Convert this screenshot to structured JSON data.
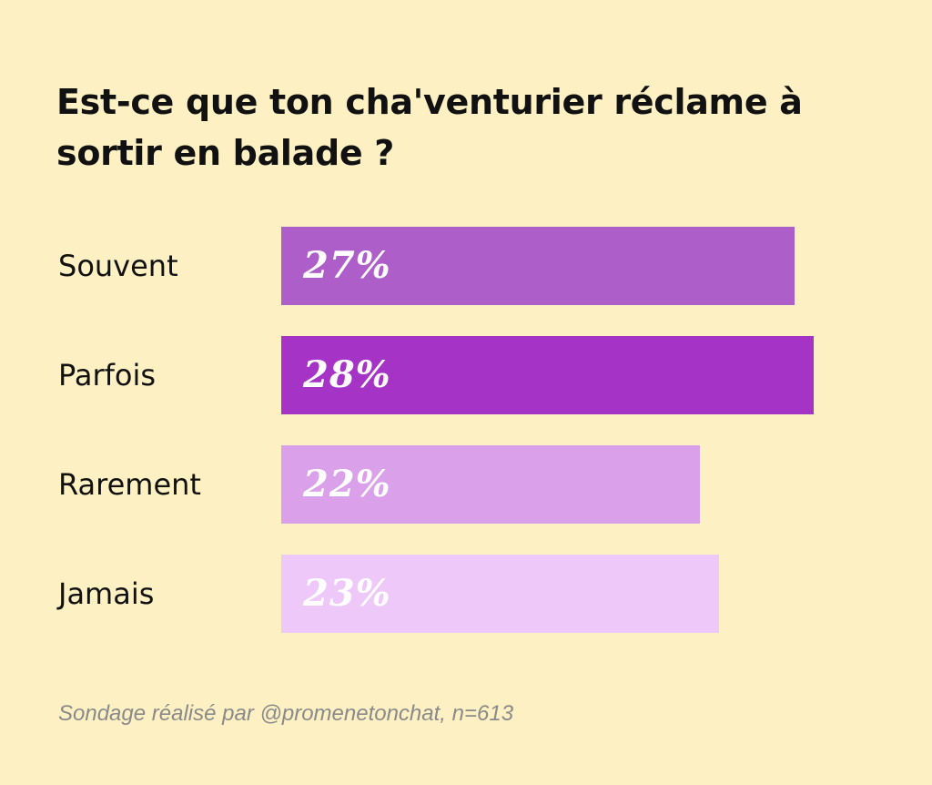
{
  "chart_data": {
    "type": "bar",
    "orientation": "horizontal",
    "title": "Est-ce que ton cha'venturier réclame à sortir en balade ?",
    "categories": [
      "Souvent",
      "Parfois",
      "Rarement",
      "Jamais"
    ],
    "values": [
      27,
      28,
      22,
      23
    ],
    "value_labels": [
      "27%",
      "28%",
      "22%",
      "23%"
    ],
    "colors": [
      "#ad5ec8",
      "#a433c6",
      "#daa0e9",
      "#efc8fa"
    ],
    "xlim": [
      0,
      28
    ],
    "grid": false
  },
  "footnote": "Sondage réalisé par @promenetonchat, n=613"
}
